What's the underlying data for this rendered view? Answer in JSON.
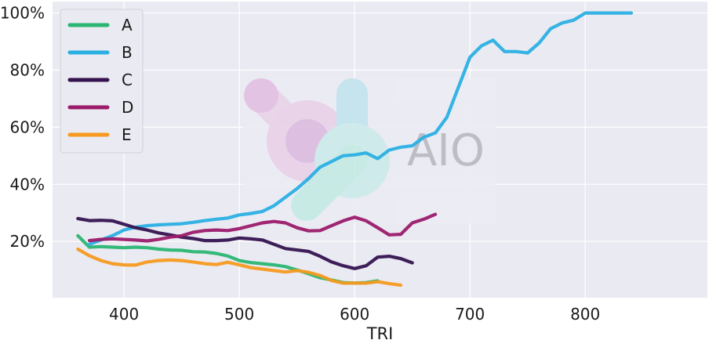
{
  "chart_data": {
    "type": "line",
    "title": "",
    "xlabel": "TRI",
    "ylabel": "",
    "xlim": [
      338,
      906
    ],
    "ylim": [
      0.3,
      104
    ],
    "xticks": [
      400,
      500,
      600,
      700,
      800
    ],
    "yticks": [
      20,
      40,
      60,
      80,
      100
    ],
    "ytick_labels": [
      "20%",
      "40%",
      "60%",
      "80%",
      "100%"
    ],
    "grid": true,
    "legend_position": "top-left",
    "watermark": "AIO",
    "series": [
      {
        "name": "A",
        "color": "#2bb673",
        "x": [
          360,
          370,
          380,
          390,
          400,
          410,
          420,
          430,
          440,
          450,
          460,
          470,
          480,
          490,
          500,
          510,
          520,
          530,
          540,
          550,
          560,
          570,
          580,
          590,
          600,
          610,
          620
        ],
        "y": [
          22.0,
          18.0,
          18.2,
          18.0,
          17.8,
          18.0,
          17.8,
          17.3,
          17.0,
          16.9,
          16.4,
          16.3,
          15.8,
          14.9,
          13.3,
          12.6,
          12.2,
          11.8,
          11.2,
          10.0,
          8.7,
          7.3,
          6.5,
          5.6,
          5.4,
          5.6,
          6.2
        ]
      },
      {
        "name": "B",
        "color": "#2ab0e3",
        "x": [
          370,
          380,
          390,
          400,
          410,
          420,
          430,
          440,
          450,
          460,
          470,
          480,
          490,
          500,
          510,
          520,
          530,
          540,
          550,
          560,
          570,
          580,
          590,
          600,
          610,
          620,
          630,
          640,
          650,
          660,
          670,
          680,
          690,
          700,
          710,
          720,
          730,
          740,
          750,
          760,
          770,
          780,
          790,
          800,
          810,
          820,
          830,
          840
        ],
        "y": [
          19.0,
          20.5,
          22.0,
          24.0,
          25.0,
          25.5,
          25.8,
          26.0,
          26.2,
          26.7,
          27.3,
          27.8,
          28.2,
          29.3,
          29.8,
          30.5,
          32.5,
          35.5,
          38.5,
          42.0,
          46.0,
          48.0,
          50.0,
          50.3,
          51.0,
          49.0,
          52.0,
          53.0,
          53.5,
          56.5,
          58.0,
          63.5,
          74.0,
          84.5,
          88.5,
          90.5,
          86.5,
          86.5,
          86.0,
          89.5,
          94.5,
          96.5,
          97.5,
          100.0,
          100.0,
          100.0,
          100.0,
          100.0
        ]
      },
      {
        "name": "C",
        "color": "#35134f",
        "x": [
          360,
          370,
          380,
          390,
          400,
          410,
          420,
          430,
          440,
          450,
          460,
          470,
          480,
          490,
          500,
          510,
          520,
          530,
          540,
          550,
          560,
          570,
          580,
          590,
          600,
          610,
          620,
          630,
          640,
          650
        ],
        "y": [
          28.0,
          27.3,
          27.4,
          27.2,
          26.0,
          24.8,
          24.0,
          23.0,
          22.3,
          21.5,
          21.0,
          20.3,
          20.3,
          20.5,
          21.2,
          20.9,
          20.5,
          19.0,
          17.5,
          17.0,
          16.5,
          14.8,
          12.8,
          11.5,
          10.5,
          11.5,
          14.5,
          14.8,
          14.0,
          12.5
        ]
      },
      {
        "name": "D",
        "color": "#9b1b6a",
        "x": [
          370,
          380,
          390,
          400,
          410,
          420,
          430,
          440,
          450,
          460,
          470,
          480,
          490,
          500,
          510,
          520,
          530,
          540,
          550,
          560,
          570,
          580,
          590,
          600,
          610,
          620,
          630,
          640,
          650,
          660,
          670
        ],
        "y": [
          20.3,
          20.7,
          20.9,
          20.7,
          20.5,
          20.2,
          20.7,
          21.5,
          22.0,
          23.2,
          23.8,
          24.0,
          23.8,
          24.5,
          25.5,
          26.5,
          27.0,
          26.5,
          24.8,
          23.7,
          23.8,
          25.5,
          27.2,
          28.5,
          27.2,
          24.8,
          22.3,
          22.5,
          26.5,
          27.8,
          29.5
        ]
      },
      {
        "name": "E",
        "color": "#f79a1f",
        "x": [
          360,
          370,
          380,
          390,
          400,
          410,
          420,
          430,
          440,
          450,
          460,
          470,
          480,
          490,
          500,
          510,
          520,
          530,
          540,
          550,
          560,
          570,
          580,
          590,
          600,
          610,
          620,
          630,
          640
        ],
        "y": [
          17.3,
          15.0,
          13.3,
          12.2,
          11.8,
          11.7,
          12.8,
          13.3,
          13.5,
          13.3,
          12.8,
          12.2,
          11.9,
          12.7,
          11.8,
          10.8,
          10.3,
          9.8,
          9.3,
          9.8,
          9.2,
          8.1,
          6.3,
          5.4,
          5.4,
          5.4,
          5.9,
          5.2,
          4.7
        ]
      }
    ]
  }
}
